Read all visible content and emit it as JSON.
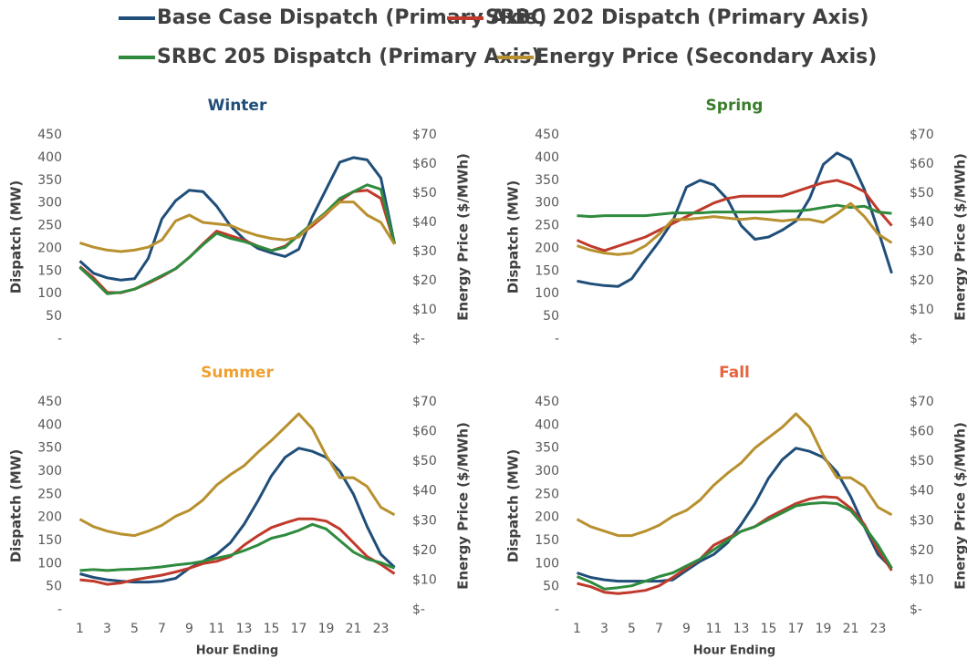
{
  "legend": [
    {
      "name": "Base Case Dispatch (Primary Axis)",
      "color": "#1f4e79"
    },
    {
      "name": "SRBC 202 Dispatch (Primary Axis)",
      "color": "#c0392b"
    },
    {
      "name": "SRBC 205 Dispatch (Primary Axis)",
      "color": "#2e8b3e"
    },
    {
      "name": "Energy Price (Secondary Axis)",
      "color": "#b8902e"
    }
  ],
  "chart_data": [
    {
      "type": "line",
      "title": "Winter",
      "title_color": "#1f4e79",
      "ylabel": "Dispatch (MW)",
      "y2label": "Energy Price ($/MWh)",
      "x": [
        1,
        2,
        3,
        4,
        5,
        6,
        7,
        8,
        9,
        10,
        11,
        12,
        13,
        14,
        15,
        16,
        17,
        18,
        19,
        20,
        21,
        22,
        23,
        24
      ],
      "xlim": [
        0.5,
        24.5
      ],
      "ylim": [
        0,
        450
      ],
      "yticks": [
        {
          "value": 0,
          "label": "-"
        },
        50,
        100,
        150,
        200,
        250,
        300,
        350,
        400,
        450
      ],
      "y2lim": [
        0,
        70
      ],
      "y2ticks": [
        {
          "value": 0,
          "label": "$-"
        },
        {
          "value": 10,
          "label": "$10"
        },
        {
          "value": 20,
          "label": "$20"
        },
        {
          "value": 30,
          "label": "$30"
        },
        {
          "value": 40,
          "label": "$40"
        },
        {
          "value": 50,
          "label": "$50"
        },
        {
          "value": 60,
          "label": "$60"
        },
        {
          "value": 70,
          "label": "$70"
        }
      ],
      "series": [
        {
          "values": [
            172,
            145,
            135,
            130,
            133,
            178,
            265,
            305,
            328,
            325,
            293,
            250,
            220,
            200,
            190,
            182,
            198,
            270,
            330,
            390,
            400,
            395,
            355,
            210
          ]
        },
        {
          "values": [
            160,
            135,
            103,
            102,
            110,
            123,
            138,
            155,
            180,
            210,
            238,
            228,
            218,
            205,
            195,
            205,
            228,
            250,
            275,
            305,
            325,
            328,
            310,
            210
          ]
        },
        {
          "values": [
            158,
            130,
            100,
            103,
            110,
            125,
            140,
            155,
            180,
            208,
            233,
            222,
            215,
            205,
            195,
            202,
            230,
            255,
            280,
            310,
            325,
            340,
            330,
            210
          ]
        },
        {
          "axis": "y2",
          "values": [
            33,
            31.5,
            30.5,
            30,
            30.5,
            31.5,
            34,
            40.5,
            42.5,
            40,
            39.5,
            39,
            37,
            35.5,
            34.5,
            34,
            35,
            39.5,
            43,
            47,
            47,
            42.5,
            40,
            32.5
          ]
        }
      ]
    },
    {
      "type": "line",
      "title": "Spring",
      "title_color": "#3a7d2c",
      "ylabel": "Dispatch (MW)",
      "y2label": "Energy Price ($/MWh)",
      "x": [
        1,
        2,
        3,
        4,
        5,
        6,
        7,
        8,
        9,
        10,
        11,
        12,
        13,
        14,
        15,
        16,
        17,
        18,
        19,
        20,
        21,
        22,
        23,
        24
      ],
      "xlim": [
        0.5,
        24.5
      ],
      "ylim": [
        0,
        450
      ],
      "yticks": [
        {
          "value": 0,
          "label": "-"
        },
        50,
        100,
        150,
        200,
        250,
        300,
        350,
        400,
        450
      ],
      "y2lim": [
        0,
        70
      ],
      "y2ticks": [
        {
          "value": 0,
          "label": "$-"
        },
        {
          "value": 10,
          "label": "$10"
        },
        {
          "value": 20,
          "label": "$20"
        },
        {
          "value": 30,
          "label": "$30"
        },
        {
          "value": 40,
          "label": "$40"
        },
        {
          "value": 50,
          "label": "$50"
        },
        {
          "value": 60,
          "label": "$60"
        },
        {
          "value": 70,
          "label": "$70"
        }
      ],
      "series": [
        {
          "values": [
            128,
            122,
            118,
            116,
            133,
            175,
            215,
            260,
            335,
            350,
            340,
            308,
            250,
            220,
            225,
            240,
            260,
            310,
            385,
            410,
            395,
            330,
            240,
            145
          ]
        },
        {
          "values": [
            218,
            205,
            195,
            205,
            215,
            225,
            240,
            255,
            270,
            285,
            300,
            310,
            315,
            315,
            315,
            315,
            325,
            335,
            345,
            350,
            340,
            325,
            285,
            250
          ]
        },
        {
          "values": [
            272,
            270,
            272,
            272,
            272,
            272,
            275,
            278,
            278,
            278,
            280,
            280,
            280,
            280,
            280,
            282,
            282,
            285,
            290,
            295,
            290,
            293,
            280,
            277
          ]
        },
        {
          "axis": "y2",
          "values": [
            32,
            30.5,
            29.5,
            29,
            29.5,
            32,
            36,
            41,
            41,
            41.5,
            42,
            41.5,
            41,
            41.5,
            41,
            40.5,
            41,
            41,
            40,
            43,
            46.5,
            42,
            36,
            33
          ]
        }
      ]
    },
    {
      "type": "line",
      "title": "Summer",
      "title_color": "#f0a030",
      "ylabel": "Dispatch (MW)",
      "y2label": "Energy Price ($/MWh)",
      "xlabel": "Hour Ending",
      "x": [
        1,
        2,
        3,
        4,
        5,
        6,
        7,
        8,
        9,
        10,
        11,
        12,
        13,
        14,
        15,
        16,
        17,
        18,
        19,
        20,
        21,
        22,
        23,
        24
      ],
      "xlim": [
        0.5,
        24.5
      ],
      "xticks": [
        1,
        3,
        5,
        7,
        9,
        11,
        13,
        15,
        17,
        19,
        21,
        23
      ],
      "ylim": [
        0,
        450
      ],
      "yticks": [
        {
          "value": 0,
          "label": "-"
        },
        50,
        100,
        150,
        200,
        250,
        300,
        350,
        400,
        450
      ],
      "y2lim": [
        0,
        70
      ],
      "y2ticks": [
        {
          "value": 0,
          "label": "$-"
        },
        {
          "value": 10,
          "label": "$10"
        },
        {
          "value": 20,
          "label": "$20"
        },
        {
          "value": 30,
          "label": "$30"
        },
        {
          "value": 40,
          "label": "$40"
        },
        {
          "value": 50,
          "label": "$50"
        },
        {
          "value": 60,
          "label": "$60"
        },
        {
          "value": 70,
          "label": "$70"
        }
      ],
      "series": [
        {
          "values": [
            78,
            70,
            65,
            62,
            60,
            60,
            62,
            68,
            90,
            105,
            120,
            145,
            185,
            235,
            290,
            330,
            350,
            343,
            330,
            300,
            250,
            180,
            120,
            92
          ]
        },
        {
          "values": [
            65,
            62,
            55,
            58,
            65,
            70,
            75,
            82,
            90,
            100,
            105,
            115,
            140,
            160,
            178,
            188,
            197,
            197,
            192,
            175,
            145,
            115,
            98,
            78
          ]
        },
        {
          "values": [
            85,
            87,
            85,
            87,
            88,
            90,
            93,
            97,
            100,
            105,
            112,
            118,
            128,
            140,
            155,
            162,
            172,
            185,
            175,
            150,
            125,
            110,
            102,
            90
          ]
        },
        {
          "axis": "y2",
          "values": [
            30.5,
            28,
            26.5,
            25.5,
            25,
            26.5,
            28.5,
            31.5,
            33.5,
            37,
            42,
            45.5,
            48.5,
            53,
            57,
            61.5,
            66,
            61,
            52,
            44.5,
            44.5,
            41.5,
            34.5,
            32
          ]
        }
      ]
    },
    {
      "type": "line",
      "title": "Fall",
      "title_color": "#e8623c",
      "ylabel": "Dispatch (MW)",
      "y2label": "Energy Price ($/MWh)",
      "xlabel": "Hour Ending",
      "x": [
        1,
        2,
        3,
        4,
        5,
        6,
        7,
        8,
        9,
        10,
        11,
        12,
        13,
        14,
        15,
        16,
        17,
        18,
        19,
        20,
        21,
        22,
        23,
        24
      ],
      "xlim": [
        0.5,
        24.5
      ],
      "xticks": [
        1,
        3,
        5,
        7,
        9,
        11,
        13,
        15,
        17,
        19,
        21,
        23
      ],
      "ylim": [
        0,
        450
      ],
      "yticks": [
        {
          "value": 0,
          "label": "-"
        },
        50,
        100,
        150,
        200,
        250,
        300,
        350,
        400,
        450
      ],
      "y2lim": [
        0,
        70
      ],
      "y2ticks": [
        {
          "value": 0,
          "label": "$-"
        },
        {
          "value": 10,
          "label": "$10"
        },
        {
          "value": 20,
          "label": "$20"
        },
        {
          "value": 30,
          "label": "$30"
        },
        {
          "value": 40,
          "label": "$40"
        },
        {
          "value": 50,
          "label": "$50"
        },
        {
          "value": 60,
          "label": "$60"
        },
        {
          "value": 70,
          "label": "$70"
        }
      ],
      "series": [
        {
          "values": [
            80,
            70,
            65,
            62,
            62,
            62,
            62,
            65,
            85,
            105,
            120,
            145,
            185,
            230,
            285,
            325,
            350,
            343,
            330,
            298,
            245,
            180,
            120,
            90
          ]
        },
        {
          "values": [
            57,
            50,
            38,
            35,
            38,
            42,
            52,
            70,
            90,
            110,
            140,
            155,
            170,
            180,
            200,
            215,
            230,
            240,
            245,
            243,
            220,
            185,
            130,
            85
          ]
        },
        {
          "values": [
            72,
            60,
            45,
            48,
            52,
            62,
            72,
            80,
            95,
            110,
            130,
            150,
            170,
            180,
            195,
            210,
            225,
            230,
            232,
            230,
            215,
            180,
            140,
            90
          ]
        },
        {
          "axis": "y2",
          "values": [
            30.5,
            28,
            26.5,
            25,
            25,
            26.5,
            28.5,
            31.5,
            33.5,
            37,
            42,
            46,
            49.5,
            54.5,
            58,
            61.5,
            66,
            61.5,
            52,
            44.5,
            44.5,
            41.5,
            34.5,
            32
          ]
        }
      ]
    }
  ]
}
